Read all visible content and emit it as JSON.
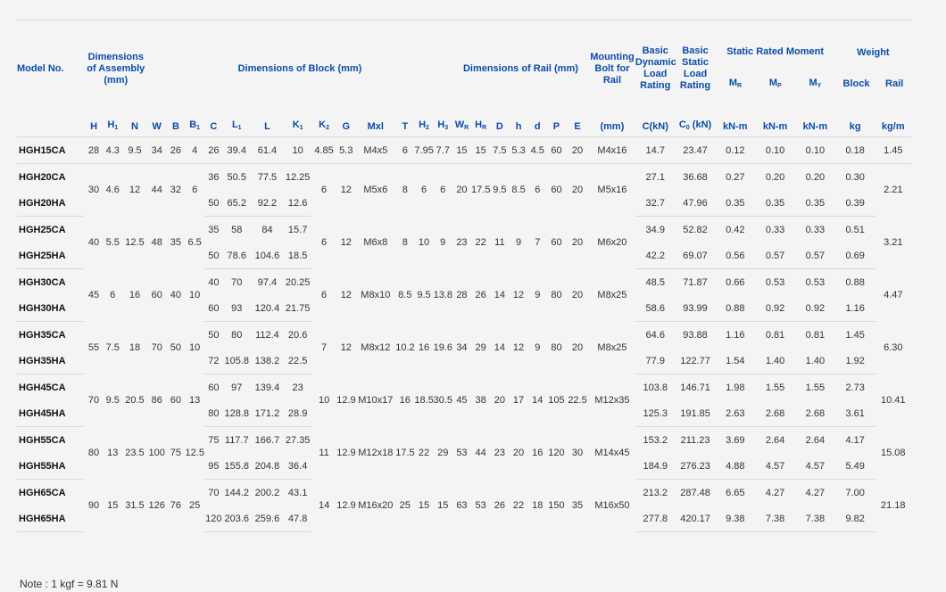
{
  "table": {
    "headers": {
      "model_no": "Model No.",
      "dim_assembly": "Dimensions of Assembly (mm)",
      "dim_block": "Dimensions of Block (mm)",
      "dim_rail": "Dimensions of Rail (mm)",
      "mounting_bolt": "Mounting Bolt for Rail",
      "basic_dynamic": "Basic Dynamic Load Rating",
      "basic_static": "Basic Static Load Rating",
      "static_moment": "Static Rated Moment",
      "weight": "Weight",
      "mr": "MR",
      "mp": "MP",
      "my": "MY",
      "block": "Block",
      "rail": "Rail",
      "sub_cols": [
        "H",
        "H1",
        "N",
        "W",
        "B",
        "B1",
        "C",
        "L1",
        "L",
        "K1",
        "K2",
        "G",
        "Mxl",
        "T",
        "H2",
        "H3",
        "WR",
        "HR",
        "D",
        "h",
        "d",
        "P",
        "E",
        "(mm)",
        "C(kN)",
        "C0 (kN)",
        "kN-m",
        "kN-m",
        "kN-m",
        "kg",
        "kg/m"
      ]
    },
    "groups": [
      {
        "assembly": [
          "28",
          "4.3",
          "9.5"
        ],
        "block_shared": [
          "34",
          "26",
          "4"
        ],
        "k2": "4.85",
        "g": "5.3",
        "mxl": "M4x5",
        "t": "6",
        "h2": "7.95",
        "h3": "7.7",
        "rail": [
          "15",
          "15",
          "7.5",
          "5.3",
          "4.5",
          "60",
          "20"
        ],
        "bolt": "M4x16",
        "rail_weight": "1.45",
        "rows": [
          {
            "model": "HGH15CA",
            "c": "26",
            "l1": "39.4",
            "l": "61.4",
            "k1": "10",
            "cd": "14.7",
            "cs": "23.47",
            "mr": "0.12",
            "mp": "0.10",
            "my": "0.10",
            "block": "0.18"
          }
        ]
      },
      {
        "assembly": [
          "30",
          "4.6",
          "12"
        ],
        "block_shared": [
          "44",
          "32",
          "6"
        ],
        "k2": "6",
        "g": "12",
        "mxl": "M5x6",
        "t": "8",
        "h2": "6",
        "h3": "6",
        "rail": [
          "20",
          "17.5",
          "9.5",
          "8.5",
          "6",
          "60",
          "20"
        ],
        "bolt": "M5x16",
        "rail_weight": "2.21",
        "rows": [
          {
            "model": "HGH20CA",
            "c": "36",
            "l1": "50.5",
            "l": "77.5",
            "k1": "12.25",
            "cd": "27.1",
            "cs": "36.68",
            "mr": "0.27",
            "mp": "0.20",
            "my": "0.20",
            "block": "0.30"
          },
          {
            "model": "HGH20HA",
            "c": "50",
            "l1": "65.2",
            "l": "92.2",
            "k1": "12.6",
            "cd": "32.7",
            "cs": "47.96",
            "mr": "0.35",
            "mp": "0.35",
            "my": "0.35",
            "block": "0.39"
          }
        ]
      },
      {
        "assembly": [
          "40",
          "5.5",
          "12.5"
        ],
        "block_shared": [
          "48",
          "35",
          "6.5"
        ],
        "k2": "6",
        "g": "12",
        "mxl": "M6x8",
        "t": "8",
        "h2": "10",
        "h3": "9",
        "rail": [
          "23",
          "22",
          "11",
          "9",
          "7",
          "60",
          "20"
        ],
        "bolt": "M6x20",
        "rail_weight": "3.21",
        "rows": [
          {
            "model": "HGH25CA",
            "c": "35",
            "l1": "58",
            "l": "84",
            "k1": "15.7",
            "cd": "34.9",
            "cs": "52.82",
            "mr": "0.42",
            "mp": "0.33",
            "my": "0.33",
            "block": "0.51"
          },
          {
            "model": "HGH25HA",
            "c": "50",
            "l1": "78.6",
            "l": "104.6",
            "k1": "18.5",
            "cd": "42.2",
            "cs": "69.07",
            "mr": "0.56",
            "mp": "0.57",
            "my": "0.57",
            "block": "0.69"
          }
        ]
      },
      {
        "assembly": [
          "45",
          "6",
          "16"
        ],
        "block_shared": [
          "60",
          "40",
          "10"
        ],
        "k2": "6",
        "g": "12",
        "mxl": "M8x10",
        "t": "8.5",
        "h2": "9.5",
        "h3": "13.8",
        "rail": [
          "28",
          "26",
          "14",
          "12",
          "9",
          "80",
          "20"
        ],
        "bolt": "M8x25",
        "rail_weight": "4.47",
        "rows": [
          {
            "model": "HGH30CA",
            "c": "40",
            "l1": "70",
            "l": "97.4",
            "k1": "20.25",
            "cd": "48.5",
            "cs": "71.87",
            "mr": "0.66",
            "mp": "0.53",
            "my": "0.53",
            "block": "0.88"
          },
          {
            "model": "HGH30HA",
            "c": "60",
            "l1": "93",
            "l": "120.4",
            "k1": "21.75",
            "cd": "58.6",
            "cs": "93.99",
            "mr": "0.88",
            "mp": "0.92",
            "my": "0.92",
            "block": "1.16"
          }
        ]
      },
      {
        "assembly": [
          "55",
          "7.5",
          "18"
        ],
        "block_shared": [
          "70",
          "50",
          "10"
        ],
        "k2": "7",
        "g": "12",
        "mxl": "M8x12",
        "t": "10.2",
        "h2": "16",
        "h3": "19.6",
        "rail": [
          "34",
          "29",
          "14",
          "12",
          "9",
          "80",
          "20"
        ],
        "bolt": "M8x25",
        "rail_weight": "6.30",
        "rows": [
          {
            "model": "HGH35CA",
            "c": "50",
            "l1": "80",
            "l": "112.4",
            "k1": "20.6",
            "cd": "64.6",
            "cs": "93.88",
            "mr": "1.16",
            "mp": "0.81",
            "my": "0.81",
            "block": "1.45"
          },
          {
            "model": "HGH35HA",
            "c": "72",
            "l1": "105.8",
            "l": "138.2",
            "k1": "22.5",
            "cd": "77.9",
            "cs": "122.77",
            "mr": "1.54",
            "mp": "1.40",
            "my": "1.40",
            "block": "1.92"
          }
        ]
      },
      {
        "assembly": [
          "70",
          "9.5",
          "20.5"
        ],
        "block_shared": [
          "86",
          "60",
          "13"
        ],
        "k2": "10",
        "g": "12.9",
        "mxl": "M10x17",
        "t": "16",
        "h2": "18.5",
        "h3": "30.5",
        "rail": [
          "45",
          "38",
          "20",
          "17",
          "14",
          "105",
          "22.5"
        ],
        "bolt": "M12x35",
        "rail_weight": "10.41",
        "rows": [
          {
            "model": "HGH45CA",
            "c": "60",
            "l1": "97",
            "l": "139.4",
            "k1": "23",
            "cd": "103.8",
            "cs": "146.71",
            "mr": "1.98",
            "mp": "1.55",
            "my": "1.55",
            "block": "2.73"
          },
          {
            "model": "HGH45HA",
            "c": "80",
            "l1": "128.8",
            "l": "171.2",
            "k1": "28.9",
            "cd": "125.3",
            "cs": "191.85",
            "mr": "2.63",
            "mp": "2.68",
            "my": "2.68",
            "block": "3.61"
          }
        ]
      },
      {
        "assembly": [
          "80",
          "13",
          "23.5"
        ],
        "block_shared": [
          "100",
          "75",
          "12.5"
        ],
        "k2": "11",
        "g": "12.9",
        "mxl": "M12x18",
        "t": "17.5",
        "h2": "22",
        "h3": "29",
        "rail": [
          "53",
          "44",
          "23",
          "20",
          "16",
          "120",
          "30"
        ],
        "bolt": "M14x45",
        "rail_weight": "15.08",
        "rows": [
          {
            "model": "HGH55CA",
            "c": "75",
            "l1": "117.7",
            "l": "166.7",
            "k1": "27.35",
            "cd": "153.2",
            "cs": "211.23",
            "mr": "3.69",
            "mp": "2.64",
            "my": "2.64",
            "block": "4.17"
          },
          {
            "model": "HGH55HA",
            "c": "95",
            "l1": "155.8",
            "l": "204.8",
            "k1": "36.4",
            "cd": "184.9",
            "cs": "276.23",
            "mr": "4.88",
            "mp": "4.57",
            "my": "4.57",
            "block": "5.49"
          }
        ]
      },
      {
        "assembly": [
          "90",
          "15",
          "31.5"
        ],
        "block_shared": [
          "126",
          "76",
          "25"
        ],
        "k2": "14",
        "g": "12.9",
        "mxl": "M16x20",
        "t": "25",
        "h2": "15",
        "h3": "15",
        "rail": [
          "63",
          "53",
          "26",
          "22",
          "18",
          "150",
          "35"
        ],
        "bolt": "M16x50",
        "rail_weight": "21.18",
        "rows": [
          {
            "model": "HGH65CA",
            "c": "70",
            "l1": "144.2",
            "l": "200.2",
            "k1": "43.1",
            "cd": "213.2",
            "cs": "287.48",
            "mr": "6.65",
            "mp": "4.27",
            "my": "4.27",
            "block": "7.00"
          },
          {
            "model": "HGH65HA",
            "c": "120",
            "l1": "203.6",
            "l": "259.6",
            "k1": "47.8",
            "cd": "277.8",
            "cs": "420.17",
            "mr": "9.38",
            "mp": "7.38",
            "my": "7.38",
            "block": "9.82"
          }
        ]
      }
    ]
  },
  "note": "Note : 1 kgf = 9.81 N",
  "colors": {
    "header_blue": "#0a4ca8",
    "background": "#f4f4f4",
    "line": "#d9d9d9"
  }
}
